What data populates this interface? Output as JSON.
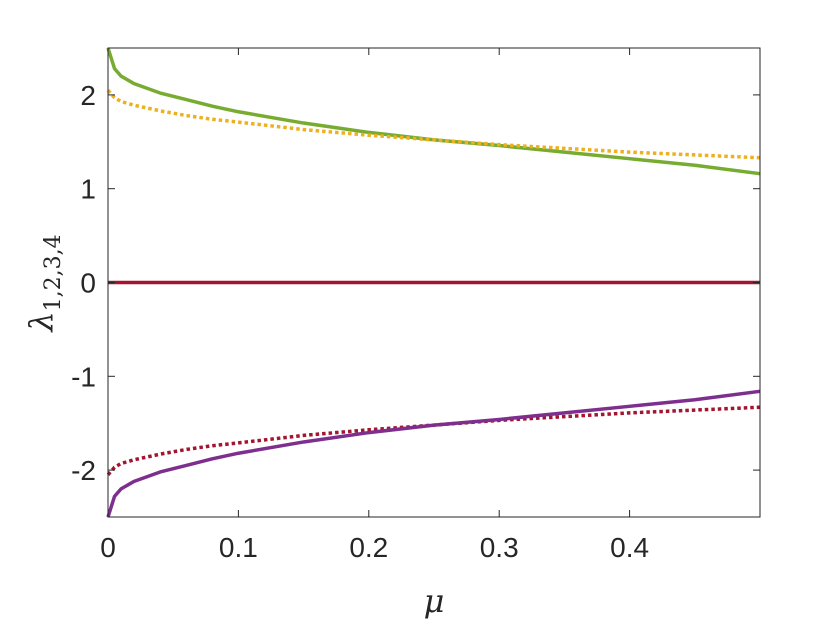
{
  "chart_data": {
    "type": "line",
    "xlabel": "μ",
    "ylabel": {
      "symbol": "λ",
      "subscript": "1,2,3,4"
    },
    "xlim": [
      0,
      0.5
    ],
    "ylim": [
      -2.5,
      2.5
    ],
    "xticks": [
      0,
      0.1,
      0.2,
      0.3,
      0.4
    ],
    "xtick_labels": [
      "0",
      "0.1",
      "0.2",
      "0.3",
      "0.4"
    ],
    "yticks": [
      -2,
      -1,
      0,
      1,
      2
    ],
    "ytick_labels": [
      "-2",
      "-1",
      "0",
      "1",
      "2"
    ],
    "grid": false,
    "series": [
      {
        "color": "#77AC30",
        "style": "solid",
        "x": [
          0.0,
          0.005,
          0.01,
          0.02,
          0.04,
          0.06,
          0.08,
          0.1,
          0.15,
          0.2,
          0.25,
          0.3,
          0.35,
          0.4,
          0.45,
          0.5
        ],
        "values": [
          2.5,
          2.28,
          2.2,
          2.12,
          2.02,
          1.95,
          1.88,
          1.82,
          1.7,
          1.6,
          1.52,
          1.46,
          1.39,
          1.32,
          1.25,
          1.16
        ]
      },
      {
        "color": "#EDB120",
        "style": "dotted",
        "x": [
          0.0,
          0.005,
          0.01,
          0.02,
          0.04,
          0.06,
          0.08,
          0.1,
          0.15,
          0.2,
          0.25,
          0.3,
          0.35,
          0.4,
          0.45,
          0.5
        ],
        "values": [
          2.05,
          1.97,
          1.93,
          1.89,
          1.83,
          1.78,
          1.74,
          1.71,
          1.63,
          1.57,
          1.52,
          1.47,
          1.43,
          1.39,
          1.36,
          1.33
        ]
      },
      {
        "color": "#A2142F",
        "style": "solid",
        "x": [
          0.0,
          0.5
        ],
        "values": [
          0.0,
          0.0
        ]
      },
      {
        "color": "#A2142F",
        "style": "dotted",
        "x": [
          0.0,
          0.005,
          0.01,
          0.02,
          0.04,
          0.06,
          0.08,
          0.1,
          0.15,
          0.2,
          0.25,
          0.3,
          0.35,
          0.4,
          0.45,
          0.5
        ],
        "values": [
          -2.05,
          -1.97,
          -1.93,
          -1.89,
          -1.83,
          -1.78,
          -1.74,
          -1.71,
          -1.63,
          -1.57,
          -1.52,
          -1.47,
          -1.43,
          -1.39,
          -1.36,
          -1.33
        ]
      },
      {
        "color": "#7E2F8E",
        "style": "solid",
        "x": [
          0.0,
          0.005,
          0.01,
          0.02,
          0.04,
          0.06,
          0.08,
          0.1,
          0.15,
          0.2,
          0.25,
          0.3,
          0.35,
          0.4,
          0.45,
          0.5
        ],
        "values": [
          -2.5,
          -2.28,
          -2.2,
          -2.12,
          -2.02,
          -1.95,
          -1.88,
          -1.82,
          -1.7,
          -1.6,
          -1.52,
          -1.46,
          -1.39,
          -1.32,
          -1.25,
          -1.16
        ]
      }
    ]
  }
}
